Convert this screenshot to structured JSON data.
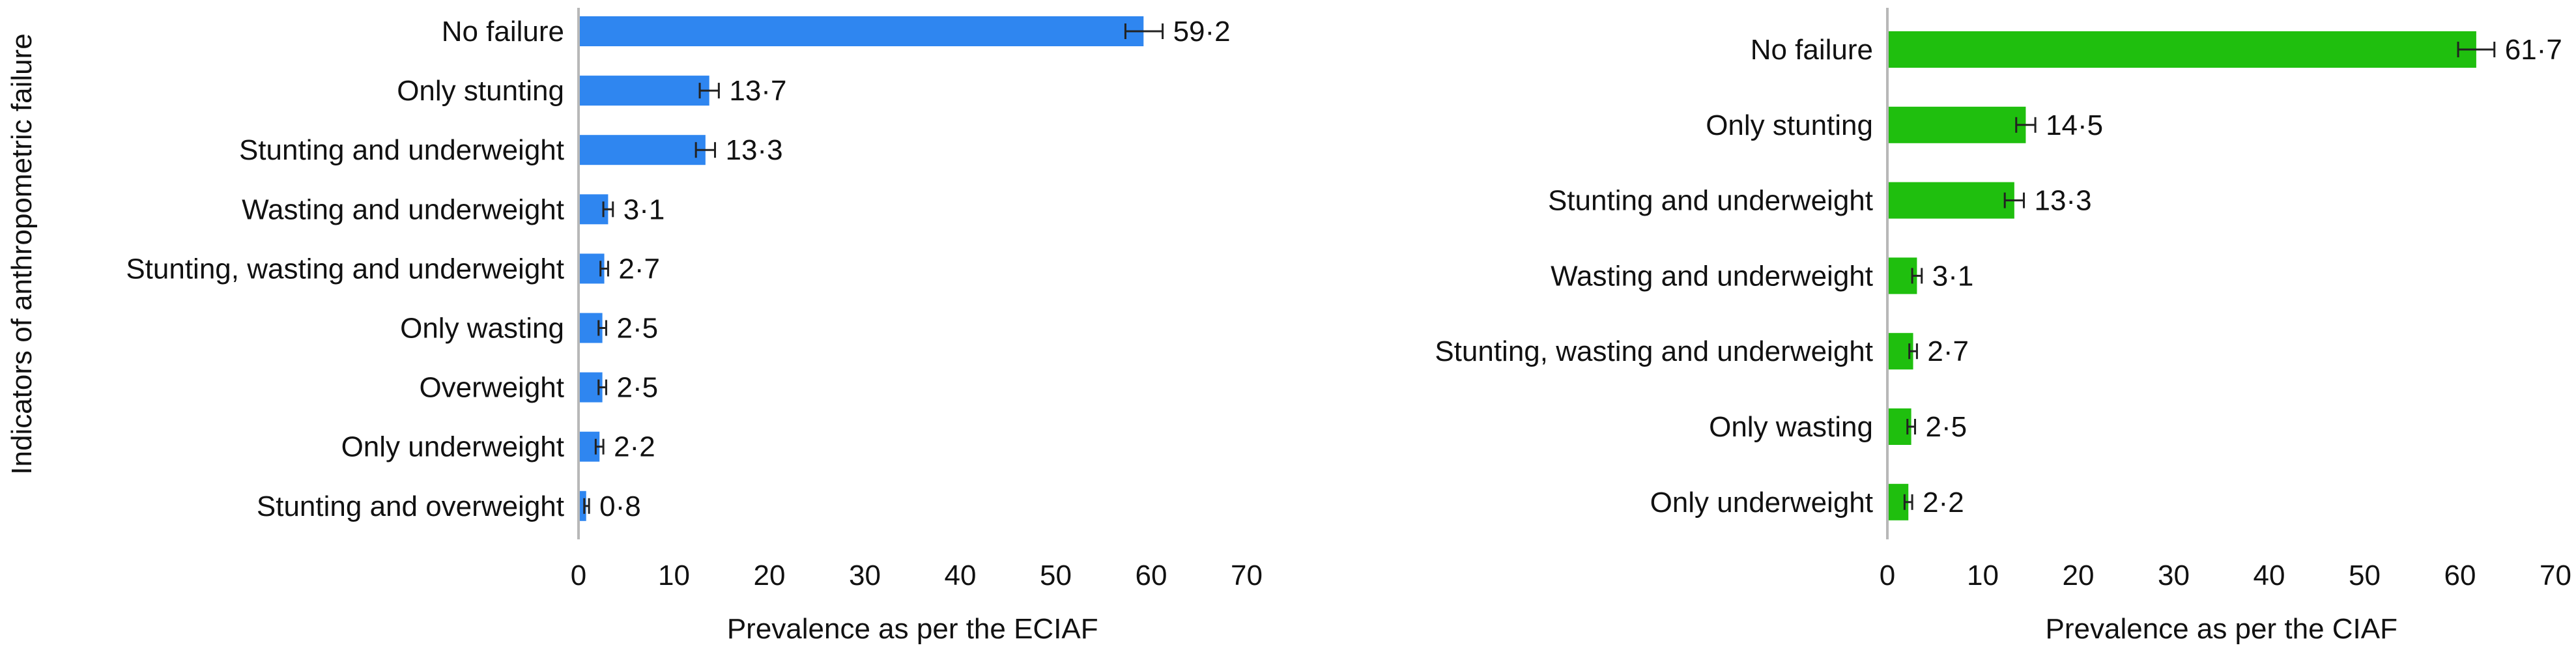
{
  "y_axis_title": "Indicators of anthropometric failure",
  "chart_data": [
    {
      "type": "bar",
      "orientation": "horizontal",
      "xlabel": "Prevalence as per the ECIAF",
      "xlim": [
        0,
        70
      ],
      "xticks": [
        0,
        10,
        20,
        30,
        40,
        50,
        60,
        70
      ],
      "color": "#2f86f0",
      "grid": false,
      "error_bars": true,
      "categories": [
        "No failure",
        "Only stunting",
        "Stunting and underweight",
        "Wasting and underweight",
        "Stunting, wasting and underweight",
        "Only wasting",
        "Overweight",
        "Only underweight",
        "Stunting and overweight"
      ],
      "values": [
        59.2,
        13.7,
        13.3,
        3.1,
        2.7,
        2.5,
        2.5,
        2.2,
        0.8
      ],
      "value_labels": [
        "59·2",
        "13·7",
        "13·3",
        "3·1",
        "2·7",
        "2·5",
        "2·5",
        "2·2",
        "0·8"
      ],
      "error_low": [
        57.3,
        12.7,
        12.3,
        2.6,
        2.3,
        2.1,
        2.1,
        1.8,
        0.6
      ],
      "error_high": [
        61.2,
        14.7,
        14.3,
        3.6,
        3.1,
        2.9,
        2.9,
        2.6,
        1.1
      ]
    },
    {
      "type": "bar",
      "orientation": "horizontal",
      "xlabel": "Prevalence as per the CIAF",
      "xlim": [
        0,
        70
      ],
      "xticks": [
        0,
        10,
        20,
        30,
        40,
        50,
        60,
        70
      ],
      "color": "#1fbf0e",
      "grid": false,
      "error_bars": true,
      "categories": [
        "No failure",
        "Only stunting",
        "Stunting and underweight",
        "Wasting and underweight",
        "Stunting, wasting and underweight",
        "Only wasting",
        "Only underweight"
      ],
      "values": [
        61.7,
        14.5,
        13.3,
        3.1,
        2.7,
        2.5,
        2.2
      ],
      "value_labels": [
        "61·7",
        "14·5",
        "13·3",
        "3·1",
        "2·7",
        "2·5",
        "2·2"
      ],
      "error_low": [
        59.8,
        13.5,
        12.3,
        2.6,
        2.3,
        2.1,
        1.8
      ],
      "error_high": [
        63.6,
        15.5,
        14.3,
        3.6,
        3.1,
        2.9,
        2.6
      ]
    }
  ]
}
